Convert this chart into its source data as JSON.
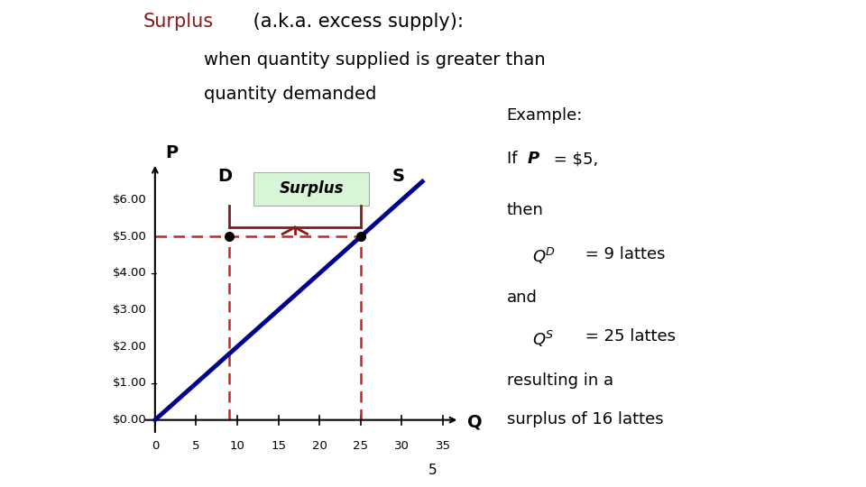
{
  "surplus_color": "#8B1A1A",
  "line_color": "#00008B",
  "dashed_color": "#CC2222",
  "surplus_box_color": "#d8f5d8",
  "y_tick_labels": [
    "$0.00",
    "$1.00",
    "$2.00",
    "$3.00",
    "$4.00",
    "$5.00",
    "$6.00"
  ],
  "x_ticks": [
    0,
    5,
    10,
    15,
    20,
    25,
    30,
    35
  ],
  "Qd_at_surplus": 9,
  "Qs_at_surplus": 25,
  "surplus_price": 5.0,
  "page_num": "5"
}
